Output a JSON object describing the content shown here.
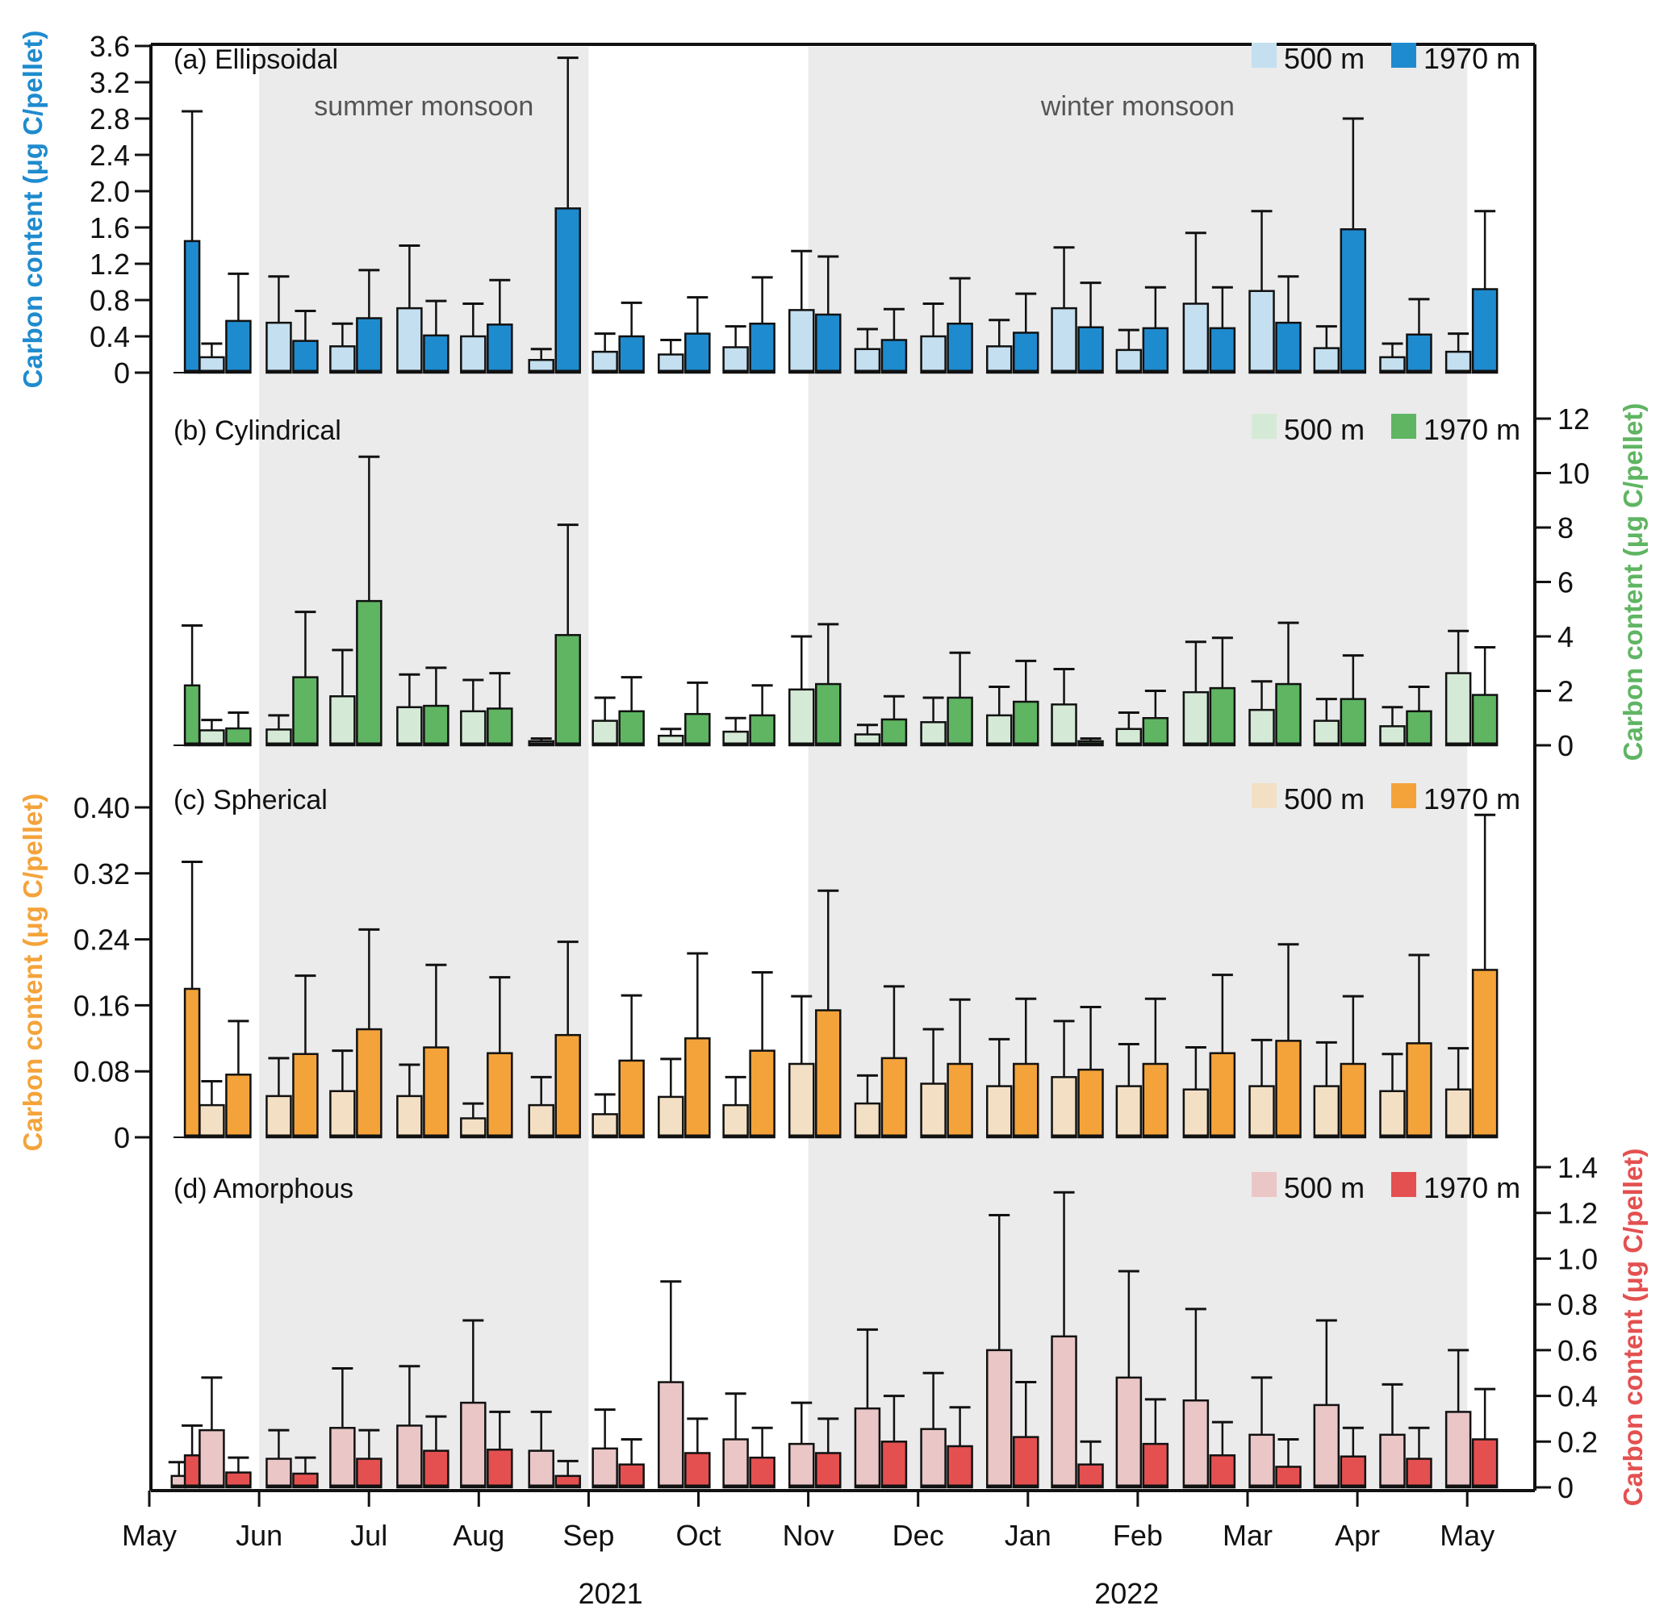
{
  "chart_data": {
    "type": "bar",
    "description": "Monthly carbon content per fecal pellet type at two depths, bars show mean with upper whisker",
    "x_axis": {
      "unit": "months since May 2021",
      "range": [
        0,
        12.8
      ],
      "ticks": [
        {
          "value": 0,
          "label": "May"
        },
        {
          "value": 1,
          "label": "Jun"
        },
        {
          "value": 2,
          "label": "Jul"
        },
        {
          "value": 3,
          "label": "Aug"
        },
        {
          "value": 4,
          "label": "Sep"
        },
        {
          "value": 5,
          "label": "Oct"
        },
        {
          "value": 6,
          "label": "Nov"
        },
        {
          "value": 7,
          "label": "Dec"
        },
        {
          "value": 8,
          "label": "Jan"
        },
        {
          "value": 9,
          "label": "Feb"
        },
        {
          "value": 10,
          "label": "Mar"
        },
        {
          "value": 11,
          "label": "Apr"
        },
        {
          "value": 12,
          "label": "May"
        }
      ],
      "year_labels": [
        {
          "value": 4.2,
          "label": "2021"
        },
        {
          "value": 8.9,
          "label": "2022"
        }
      ]
    },
    "seasons": [
      {
        "label": "summer monsoon",
        "start": 1,
        "end": 4
      },
      {
        "label": "winter monsoon",
        "start": 6,
        "end": 12
      }
    ],
    "groups_x": [
      0.69,
      1.3,
      1.88,
      2.49,
      3.07,
      3.69,
      4.27,
      4.87,
      5.46,
      6.06,
      6.66,
      7.26,
      7.86,
      8.45,
      9.04,
      9.65,
      10.25,
      10.84,
      11.44,
      12.04
    ],
    "series_names": [
      "500 m",
      "1970 m"
    ],
    "panels": [
      {
        "id": "a",
        "title": "(a) Ellipsoidal",
        "axis_side": "left",
        "ylabel": "Carbon content (μg C/pellet)",
        "ylim": [
          0,
          3.6
        ],
        "yticks": [
          0,
          0.4,
          0.8,
          1.2,
          1.6,
          2.0,
          2.4,
          2.8,
          3.2,
          3.6
        ],
        "ytick_labels": [
          "0",
          "0.4",
          "0.8",
          "1.2",
          "1.6",
          "2.0",
          "2.4",
          "2.8",
          "3.2",
          "3.6"
        ],
        "colors": {
          "light": "#c4dff0",
          "dark": "#1f8bcf",
          "axis": "#1f8bcf"
        },
        "extra_bars": [
          {
            "series": "1970 m",
            "x": 0.39,
            "value": 1.45,
            "upper": 2.88
          }
        ],
        "values_500": [
          0.17,
          0.55,
          0.29,
          0.71,
          0.4,
          0.14,
          0.23,
          0.2,
          0.28,
          0.69,
          0.26,
          0.4,
          0.29,
          0.71,
          0.25,
          0.76,
          0.9,
          0.27,
          0.17,
          0.23
        ],
        "upper_500": [
          0.32,
          1.06,
          0.54,
          1.4,
          0.76,
          0.26,
          0.43,
          0.36,
          0.51,
          1.34,
          0.48,
          0.76,
          0.58,
          1.38,
          0.47,
          1.54,
          1.78,
          0.51,
          0.32,
          0.43
        ],
        "values_1970": [
          0.57,
          0.35,
          0.6,
          0.41,
          0.53,
          1.81,
          0.4,
          0.43,
          0.54,
          0.64,
          0.36,
          0.54,
          0.44,
          0.5,
          0.49,
          0.49,
          0.55,
          1.58,
          0.42,
          0.92
        ],
        "upper_1970": [
          1.09,
          0.68,
          1.13,
          0.79,
          1.02,
          3.47,
          0.77,
          0.83,
          1.05,
          1.28,
          0.7,
          1.04,
          0.87,
          0.99,
          0.94,
          0.94,
          1.06,
          2.8,
          0.81,
          1.78
        ]
      },
      {
        "id": "b",
        "title": "(b) Cylindrical",
        "axis_side": "right",
        "ylabel": "Carbon content (μg C/pellet)",
        "ylim": [
          0,
          12
        ],
        "yticks": [
          0,
          2,
          4,
          6,
          8,
          10,
          12
        ],
        "ytick_labels": [
          "0",
          "2",
          "4",
          "6",
          "8",
          "10",
          "12"
        ],
        "colors": {
          "light": "#d4ead6",
          "dark": "#5fb562",
          "axis": "#5fb562"
        },
        "extra_bars": [
          {
            "series": "1970 m",
            "x": 0.39,
            "value": 2.2,
            "upper": 4.4
          }
        ],
        "values_500": [
          0.55,
          0.58,
          1.8,
          1.4,
          1.25,
          0.15,
          0.9,
          0.35,
          0.5,
          2.05,
          0.4,
          0.85,
          1.1,
          1.5,
          0.6,
          1.95,
          1.3,
          0.9,
          0.7,
          2.65
        ],
        "upper_500": [
          0.93,
          1.1,
          3.5,
          2.6,
          2.4,
          0.25,
          1.75,
          0.6,
          1.0,
          4.0,
          0.75,
          1.75,
          2.15,
          2.8,
          1.2,
          3.8,
          2.35,
          1.7,
          1.4,
          4.2
        ],
        "values_1970": [
          0.62,
          2.5,
          5.3,
          1.45,
          1.35,
          4.05,
          1.25,
          1.15,
          1.1,
          2.25,
          0.95,
          1.75,
          1.6,
          0.15,
          1.0,
          2.1,
          2.25,
          1.7,
          1.25,
          1.85
        ],
        "upper_1970": [
          1.2,
          4.9,
          10.6,
          2.85,
          2.65,
          8.1,
          2.5,
          2.3,
          2.2,
          4.45,
          1.8,
          3.4,
          3.1,
          0.25,
          2.0,
          3.95,
          4.5,
          3.3,
          2.15,
          3.6
        ]
      },
      {
        "id": "c",
        "title": "(c) Spherical",
        "axis_side": "left",
        "ylabel": "Carbon content (μg C/pellet)",
        "ylim": [
          0,
          0.4
        ],
        "yticks": [
          0,
          0.08,
          0.16,
          0.24,
          0.32,
          0.4
        ],
        "ytick_labels": [
          "0",
          "0.08",
          "0.16",
          "0.24",
          "0.32",
          "0.40"
        ],
        "colors": {
          "light": "#f3e0c4",
          "dark": "#f4a33a",
          "axis": "#f4a33a"
        },
        "extra_bars": [
          {
            "series": "1970 m",
            "x": 0.39,
            "value": 0.18,
            "upper": 0.334
          }
        ],
        "values_500": [
          0.039,
          0.05,
          0.056,
          0.05,
          0.023,
          0.039,
          0.028,
          0.049,
          0.039,
          0.089,
          0.041,
          0.065,
          0.062,
          0.073,
          0.062,
          0.058,
          0.062,
          0.062,
          0.056,
          0.058
        ],
        "upper_500": [
          0.068,
          0.096,
          0.105,
          0.088,
          0.041,
          0.073,
          0.052,
          0.095,
          0.073,
          0.171,
          0.075,
          0.131,
          0.119,
          0.141,
          0.113,
          0.109,
          0.118,
          0.115,
          0.101,
          0.108
        ],
        "values_1970": [
          0.076,
          0.101,
          0.131,
          0.109,
          0.102,
          0.124,
          0.093,
          0.12,
          0.105,
          0.154,
          0.096,
          0.089,
          0.089,
          0.082,
          0.089,
          0.102,
          0.117,
          0.089,
          0.114,
          0.203
        ],
        "upper_1970": [
          0.141,
          0.196,
          0.252,
          0.209,
          0.194,
          0.237,
          0.172,
          0.223,
          0.2,
          0.299,
          0.183,
          0.167,
          0.168,
          0.158,
          0.168,
          0.197,
          0.234,
          0.171,
          0.221,
          0.391
        ]
      },
      {
        "id": "d",
        "title": "(d) Amorphous",
        "axis_side": "right",
        "ylabel": "Carbon content (μg C/pellet)",
        "ylim": [
          0,
          1.4
        ],
        "yticks": [
          0,
          0.2,
          0.4,
          0.6,
          0.8,
          1.0,
          1.2,
          1.4
        ],
        "ytick_labels": [
          "0",
          "0.2",
          "0.4",
          "0.6",
          "0.8",
          "1.0",
          "1.2",
          "1.4"
        ],
        "colors": {
          "light": "#ebc6c6",
          "dark": "#e45050",
          "axis": "#e45050"
        },
        "extra_bars": [
          {
            "series": "500 m",
            "x": 0.27,
            "value": 0.05,
            "upper": 0.11
          },
          {
            "series": "1970 m",
            "x": 0.39,
            "value": 0.14,
            "upper": 0.27
          }
        ],
        "values_500": [
          0.25,
          0.125,
          0.26,
          0.27,
          0.37,
          0.16,
          0.17,
          0.46,
          0.21,
          0.19,
          0.345,
          0.255,
          0.6,
          0.66,
          0.48,
          0.38,
          0.23,
          0.36,
          0.23,
          0.33
        ],
        "upper_500": [
          0.48,
          0.25,
          0.52,
          0.53,
          0.73,
          0.33,
          0.34,
          0.9,
          0.41,
          0.37,
          0.69,
          0.5,
          1.19,
          1.29,
          0.945,
          0.78,
          0.48,
          0.73,
          0.45,
          0.6
        ],
        "values_1970": [
          0.065,
          0.06,
          0.125,
          0.16,
          0.165,
          0.05,
          0.1,
          0.15,
          0.13,
          0.15,
          0.2,
          0.18,
          0.22,
          0.1,
          0.19,
          0.14,
          0.09,
          0.135,
          0.125,
          0.21
        ],
        "upper_1970": [
          0.13,
          0.13,
          0.25,
          0.31,
          0.33,
          0.115,
          0.21,
          0.3,
          0.26,
          0.3,
          0.4,
          0.35,
          0.46,
          0.2,
          0.385,
          0.285,
          0.21,
          0.26,
          0.26,
          0.43
        ]
      }
    ]
  }
}
